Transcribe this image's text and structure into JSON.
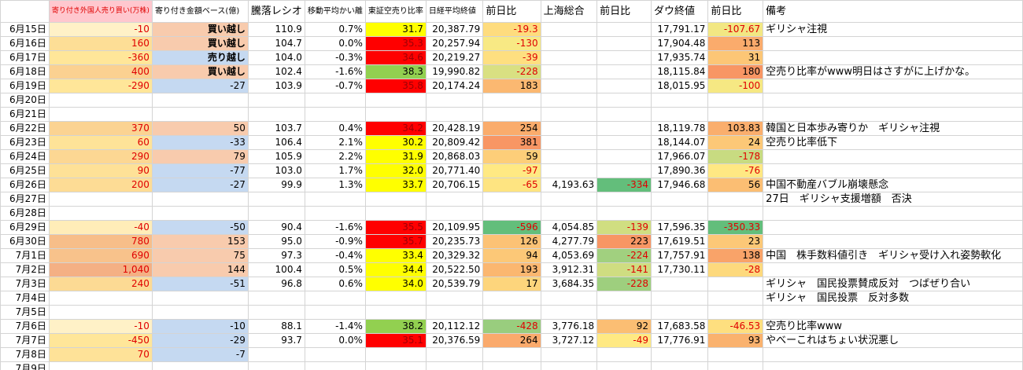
{
  "header": [
    "寄り付き外国人売り買い(万株)",
    "寄り付き金額ベース(億)",
    "騰落レシオ",
    "移動平均かい離",
    "東証空売り比率",
    "日経平均終値",
    "前日比",
    "上海総合",
    "前日比",
    "ダウ終値",
    "前日比",
    "備考"
  ],
  "rows": [
    {
      "date": "6月15日",
      "cells": [
        "-10",
        "買い越し",
        "110.9",
        "0.7%",
        "31.7",
        "20,387.79",
        "-19.3",
        null,
        null,
        "17,791.17",
        "-107.67",
        "ギリシャ注視"
      ]
    },
    {
      "date": "6月16日",
      "cells": [
        "160",
        "買い越し",
        "104.7",
        "0.0%",
        "35.3",
        "20,257.94",
        "-130",
        null,
        null,
        "17,904.48",
        "113",
        null
      ]
    },
    {
      "date": "6月17日",
      "cells": [
        "-360",
        "売り越し",
        "104.0",
        "-0.3%",
        "34.6",
        "20,219.27",
        "-39",
        null,
        null,
        "17,935.74",
        "31",
        null
      ]
    },
    {
      "date": "6月18日",
      "cells": [
        "400",
        "買い越し",
        "102.4",
        "-1.6%",
        "38.3",
        "19,990.82",
        "-228",
        null,
        null,
        "18,115.84",
        "180",
        "空売り比率がwww明日はさすがに上げかな。"
      ]
    },
    {
      "date": "6月19日",
      "cells": [
        "-290",
        "-27",
        "103.9",
        "-0.7%",
        "35.8",
        "20,174.24",
        "183",
        null,
        null,
        "18,015.95",
        "-100",
        null
      ]
    },
    {
      "date": "6月20日",
      "cells": [
        null,
        null,
        null,
        null,
        null,
        null,
        null,
        null,
        null,
        null,
        null,
        null
      ]
    },
    {
      "date": "6月21日",
      "cells": [
        null,
        null,
        null,
        null,
        null,
        null,
        null,
        null,
        null,
        null,
        null,
        null
      ]
    },
    {
      "date": "6月22日",
      "cells": [
        "370",
        "50",
        "103.7",
        "0.4%",
        "34.2",
        "20,428.19",
        "254",
        null,
        null,
        "18,119.78",
        "103.83",
        "韓国と日本歩み寄りか　ギリシャ注視"
      ]
    },
    {
      "date": "6月23日",
      "cells": [
        "60",
        "-33",
        "106.4",
        "2.1%",
        "30.2",
        "20,809.42",
        "381",
        null,
        null,
        "18,144.07",
        "24",
        "空売り比率低下"
      ]
    },
    {
      "date": "6月24日",
      "cells": [
        "290",
        "79",
        "105.9",
        "2.2%",
        "31.9",
        "20,868.03",
        "59",
        null,
        null,
        "17,966.07",
        "-178",
        null
      ]
    },
    {
      "date": "6月25日",
      "cells": [
        "90",
        "-77",
        "103.0",
        "1.7%",
        "32.0",
        "20,771.40",
        "-97",
        null,
        null,
        "17,890.36",
        "-76",
        null
      ]
    },
    {
      "date": "6月26日",
      "cells": [
        "200",
        "-27",
        "99.9",
        "1.3%",
        "33.7",
        "20,706.15",
        "-65",
        "4,193.63",
        "-334",
        "17,946.68",
        "56",
        "中国不動産バブル崩壊懸念"
      ]
    },
    {
      "date": "6月27日",
      "cells": [
        null,
        null,
        null,
        null,
        null,
        null,
        null,
        null,
        null,
        null,
        null,
        "27日　ギリシャ支援増額　否決"
      ]
    },
    {
      "date": "6月28日",
      "cells": [
        null,
        null,
        null,
        null,
        null,
        null,
        null,
        null,
        null,
        null,
        null,
        null
      ]
    },
    {
      "date": "6月29日",
      "cells": [
        "-40",
        "-50",
        "90.4",
        "-1.6%",
        "35.5",
        "20,109.95",
        "-596",
        "4,054.85",
        "-139",
        "17,596.35",
        "-350.33",
        null
      ]
    },
    {
      "date": "6月30日",
      "cells": [
        "780",
        "153",
        "95.0",
        "-0.9%",
        "35.7",
        "20,235.73",
        "126",
        "4,277.79",
        "223",
        "17,619.51",
        "23",
        null
      ]
    },
    {
      "date": "7月1日",
      "cells": [
        "690",
        "75",
        "97.3",
        "-0.4%",
        "33.4",
        "20,329.32",
        "94",
        "4,053.69",
        "-224",
        "17,757.91",
        "138",
        "中国　株手数料値引き　ギリシャ受け入れ姿勢軟化"
      ]
    },
    {
      "date": "7月2日",
      "cells": [
        "1,040",
        "144",
        "100.4",
        "0.5%",
        "34.4",
        "20,522.50",
        "193",
        "3,912.31",
        "-141",
        "17,730.11",
        "-28",
        null
      ]
    },
    {
      "date": "7月3日",
      "cells": [
        "240",
        "-51",
        "96.8",
        "0.6%",
        "34.0",
        "20,539.79",
        "17",
        "3,684.35",
        "-228",
        null,
        null,
        "ギリシャ　国民投票賛成反対　つばぜり合い"
      ]
    },
    {
      "date": "7月4日",
      "cells": [
        null,
        null,
        null,
        null,
        null,
        null,
        null,
        null,
        null,
        null,
        null,
        "ギリシャ　国民投票　反対多数"
      ]
    },
    {
      "date": "7月5日",
      "cells": [
        null,
        null,
        null,
        null,
        null,
        null,
        null,
        null,
        null,
        null,
        null,
        null
      ]
    },
    {
      "date": "7月6日",
      "cells": [
        "-10",
        "-10",
        "88.1",
        "-1.4%",
        "38.2",
        "20,112.12",
        "-428",
        "3,776.18",
        "92",
        "17,683.58",
        "-46.53",
        "空売り比率www"
      ]
    },
    {
      "date": "7月7日",
      "cells": [
        "-450",
        "-29",
        "93.7",
        "0.0%",
        "35.1",
        "20,376.59",
        "264",
        "3,727.12",
        "-49",
        "17,776.91",
        "93",
        "やべーこれはちょい状況悪し"
      ]
    },
    {
      "date": "7月8日",
      "cells": [
        "70",
        "-7",
        null,
        null,
        null,
        null,
        null,
        null,
        null,
        null,
        null,
        null
      ]
    },
    {
      "date": "7月9日",
      "cells": [
        null,
        null,
        null,
        null,
        null,
        null,
        null,
        null,
        null,
        null,
        null,
        null
      ]
    }
  ]
}
